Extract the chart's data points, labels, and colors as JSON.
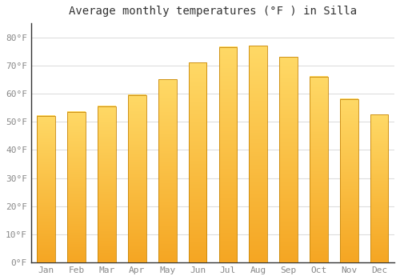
{
  "months": [
    "Jan",
    "Feb",
    "Mar",
    "Apr",
    "May",
    "Jun",
    "Jul",
    "Aug",
    "Sep",
    "Oct",
    "Nov",
    "Dec"
  ],
  "values": [
    52,
    53.5,
    55.5,
    59.5,
    65,
    71,
    76.5,
    77,
    73,
    66,
    58,
    52.5
  ],
  "bar_color_bottom": "#F5A623",
  "bar_color_top": "#FFD966",
  "bar_edge_color": "#C8870A",
  "title": "Average monthly temperatures (°F ) in Silla",
  "ylim": [
    0,
    85
  ],
  "yticks": [
    0,
    10,
    20,
    30,
    40,
    50,
    60,
    70,
    80
  ],
  "ytick_labels": [
    "0°F",
    "10°F",
    "20°F",
    "30°F",
    "40°F",
    "50°F",
    "60°F",
    "70°F",
    "80°F"
  ],
  "grid_color": "#dddddd",
  "plot_background": "#ffffff",
  "figure_background": "#ffffff",
  "title_fontsize": 10,
  "tick_fontsize": 8,
  "tick_color": "#888888",
  "bar_width": 0.6
}
